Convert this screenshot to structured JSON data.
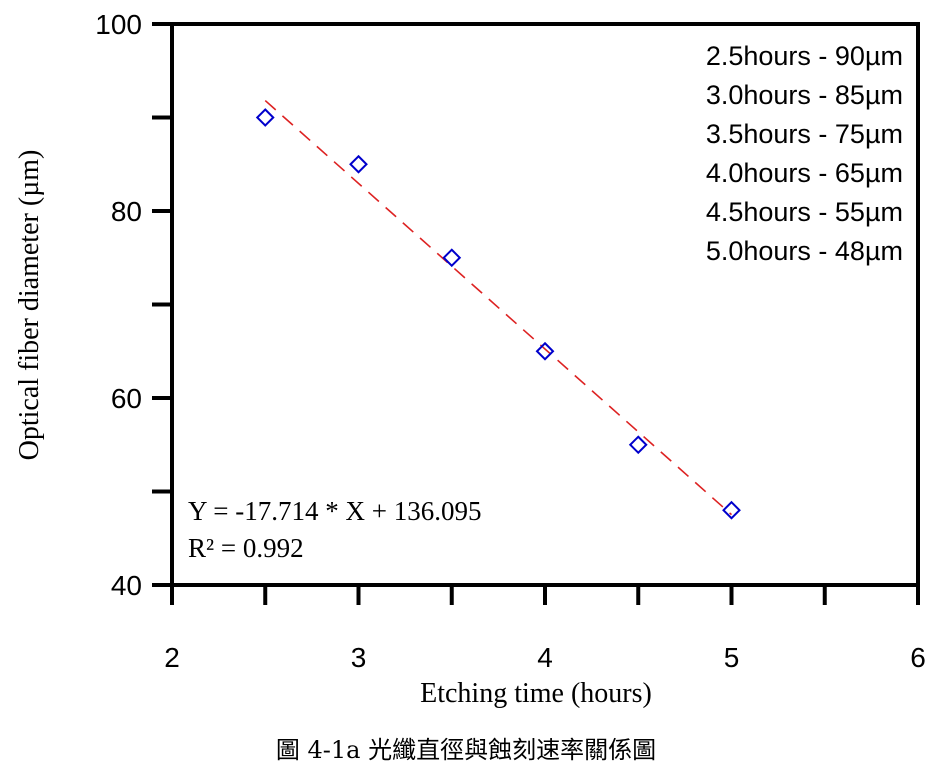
{
  "chart_data": {
    "type": "scatter",
    "xlabel": "Etching time (hours)",
    "ylabel": "Optical fiber diameter (µm)",
    "xlim": [
      2,
      6
    ],
    "ylim": [
      40,
      100
    ],
    "xticks": [
      2,
      3,
      4,
      5,
      6
    ],
    "yticks": [
      40,
      60,
      80,
      100
    ],
    "grid": false,
    "series": [
      {
        "x": [
          2.5,
          3.0,
          3.5,
          4.0,
          4.5,
          5.0
        ],
        "y": [
          90,
          85,
          75,
          65,
          55,
          48
        ],
        "marker": "diamond-open",
        "color": "#0000cc"
      }
    ],
    "fit": {
      "slope": -17.714,
      "intercept": 136.095,
      "x_range": [
        2.5,
        5.0
      ],
      "color": "#dd2222",
      "style": "dashed"
    },
    "annotations": {
      "legend_lines": [
        "2.5hours - 90µm",
        "3.0hours - 85µm",
        "3.5hours - 75µm",
        "4.0hours - 65µm",
        "4.5hours - 55µm",
        "5.0hours - 48µm"
      ],
      "equation": "Y = -17.714 * X + 136.095",
      "r_squared": "R² = 0.992"
    }
  },
  "caption": "圖 4-1a 光纖直徑與蝕刻速率關係圖"
}
